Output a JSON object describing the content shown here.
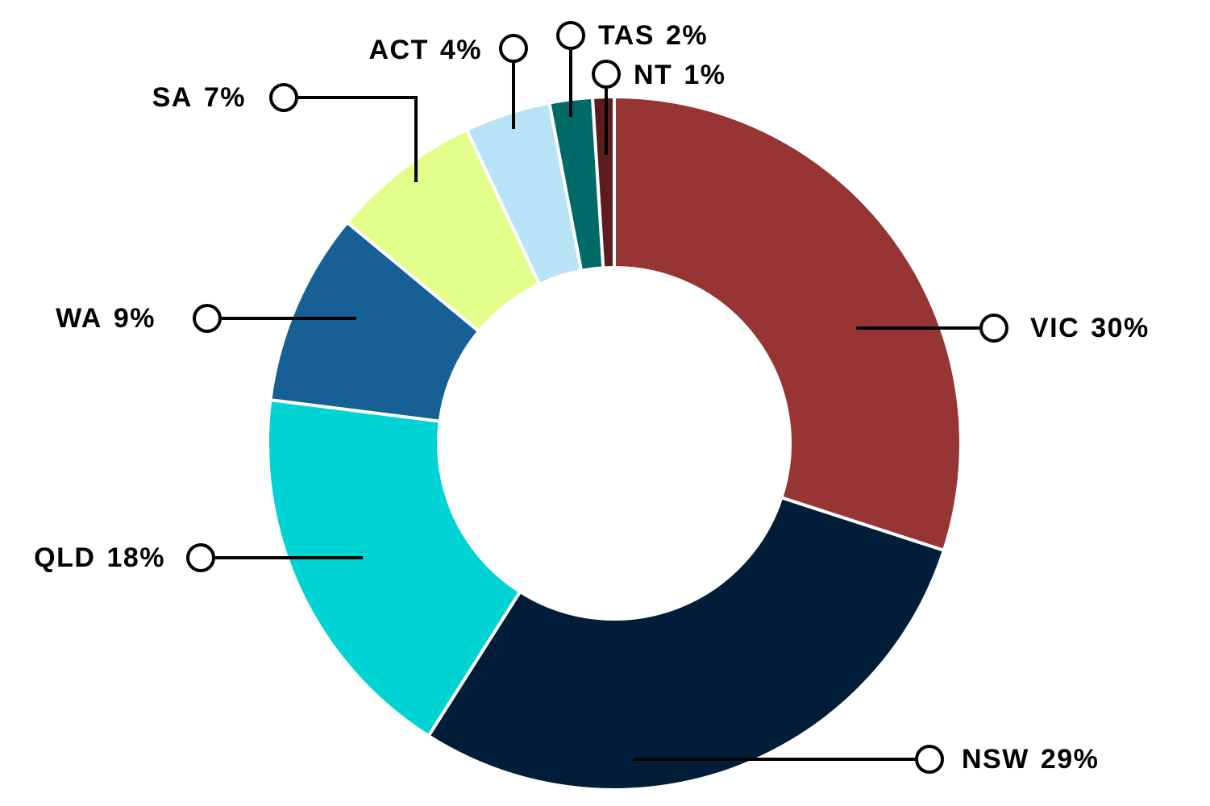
{
  "chart_data": {
    "type": "donut",
    "categories": [
      "VIC",
      "NSW",
      "QLD",
      "WA",
      "SA",
      "ACT",
      "TAS",
      "NT"
    ],
    "values": [
      30,
      29,
      18,
      9,
      7,
      4,
      2,
      1
    ],
    "value_labels": [
      "30%",
      "29%",
      "18%",
      "9%",
      "7%",
      "4%",
      "2%",
      "1%"
    ],
    "colors": [
      "#973535",
      "#021d38",
      "#00d3d3",
      "#176096",
      "#e3fd8a",
      "#b8e3f6",
      "#006a68",
      "#5a1c1c"
    ]
  }
}
